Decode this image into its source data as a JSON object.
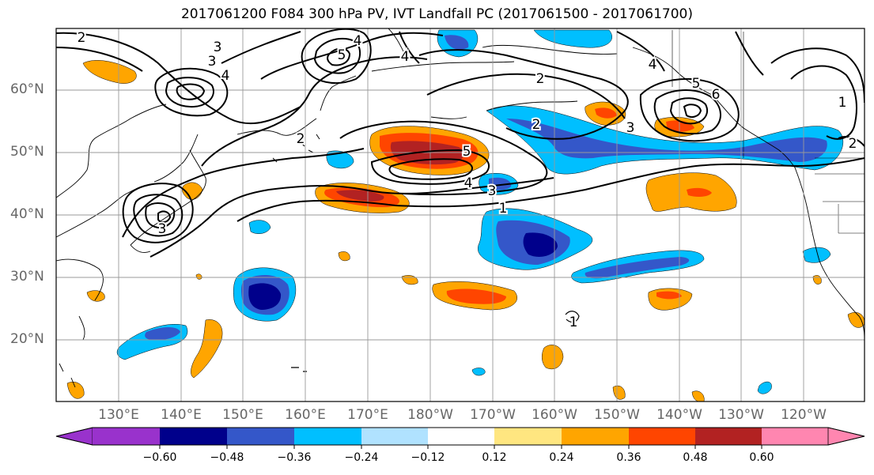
{
  "title": "2017061200 F084 300 hPa PV, IVT Landfall PC (2017061500 - 2017061700)",
  "lat_labels": [
    "60°N",
    "50°N",
    "40°N",
    "30°N",
    "20°N"
  ],
  "lon_labels": [
    "130°E",
    "140°E",
    "150°E",
    "160°E",
    "170°E",
    "180°W",
    "170°W",
    "160°W",
    "150°W",
    "140°W",
    "130°W",
    "120°W"
  ],
  "colorbar": {
    "ticks": [
      "−0.60",
      "−0.48",
      "−0.36",
      "−0.24",
      "−0.12",
      "0.12",
      "0.24",
      "0.36",
      "0.48",
      "0.60"
    ],
    "colors": [
      "#9932cc",
      "#00008b",
      "#3457c9",
      "#00bfff",
      "#b0e2ff",
      "#ffffff",
      "#ffe680",
      "#ffa500",
      "#ff4500",
      "#b22222",
      "#ff86b0"
    ]
  },
  "fill_colors": {
    "neg_light": "#00bfff",
    "neg_mid": "#3457c9",
    "neg_dark": "#00008b",
    "pos_light": "#ffe680",
    "pos_mid": "#ffa500",
    "pos_strong": "#ff4500",
    "pos_dark": "#b22222"
  },
  "contour_labels": [
    "2",
    "3",
    "4",
    "3",
    "4",
    "5",
    "4",
    "2",
    "2",
    "4",
    "5",
    "6",
    "3",
    "1",
    "2",
    "5",
    "4",
    "3",
    "1",
    "3",
    "2",
    "1"
  ]
}
